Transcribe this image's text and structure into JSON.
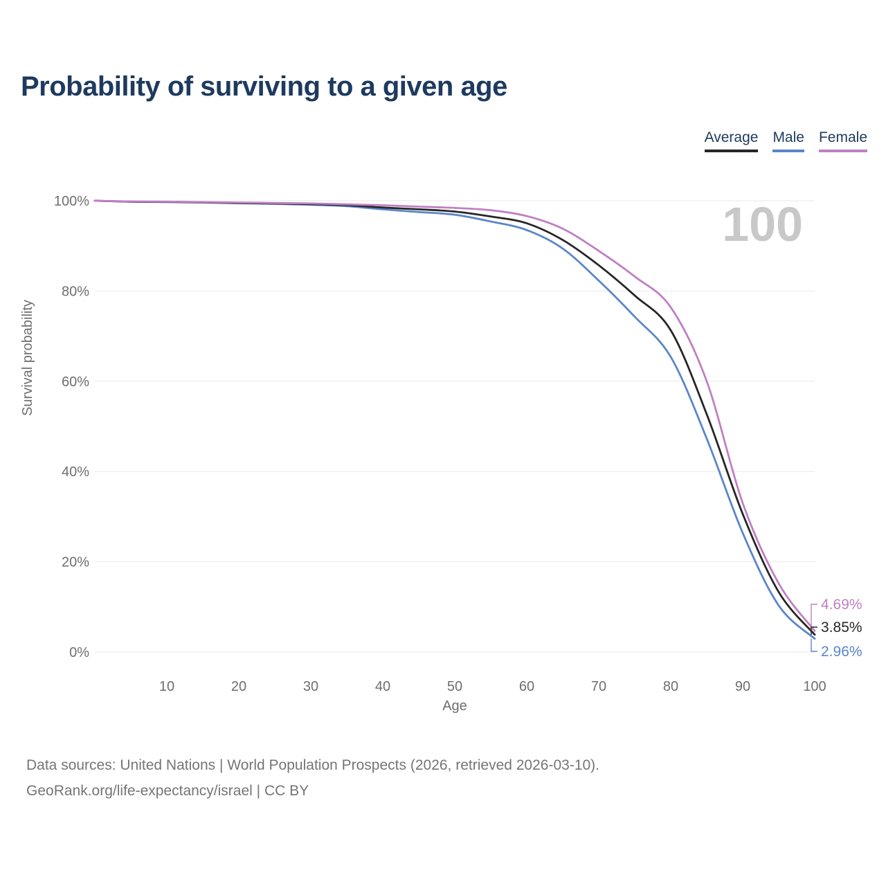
{
  "title": "Probability of surviving to a given age",
  "watermark": "100",
  "legend": [
    {
      "label": "Average",
      "color": "#262626"
    },
    {
      "label": "Male",
      "color": "#5b86c8"
    },
    {
      "label": "Female",
      "color": "#bf80c2"
    }
  ],
  "chart_data": {
    "type": "line",
    "title": "Probability of surviving to a given age",
    "xlabel": "Age",
    "ylabel": "Survival probability",
    "xlim": [
      0,
      100
    ],
    "ylim": [
      0,
      100
    ],
    "grid": "horizontal",
    "legend_position": "top-right",
    "x_ticks": [
      10,
      20,
      30,
      40,
      50,
      60,
      70,
      80,
      90,
      100
    ],
    "y_ticks": [
      0,
      20,
      40,
      60,
      80,
      100
    ],
    "y_tick_suffix": "%",
    "x": [
      0,
      5,
      10,
      15,
      20,
      25,
      30,
      35,
      40,
      45,
      50,
      55,
      60,
      65,
      70,
      75,
      80,
      85,
      90,
      95,
      100
    ],
    "series": [
      {
        "name": "Average",
        "color": "#262626",
        "end_label": "3.85%",
        "values": [
          100,
          99.8,
          99.75,
          99.65,
          99.5,
          99.4,
          99.25,
          99.0,
          98.5,
          98.1,
          97.6,
          96.5,
          95.0,
          91.3,
          85.7,
          79.0,
          71.3,
          52.7,
          30.6,
          13.3,
          3.85
        ]
      },
      {
        "name": "Male",
        "color": "#5b86c8",
        "end_label": "2.96%",
        "values": [
          100,
          99.8,
          99.7,
          99.6,
          99.45,
          99.3,
          99.1,
          98.8,
          98.1,
          97.5,
          96.9,
          95.4,
          93.5,
          89.4,
          82.3,
          74.3,
          65.4,
          47.3,
          26.4,
          10.3,
          2.96
        ]
      },
      {
        "name": "Female",
        "color": "#bf80c2",
        "end_label": "4.69%",
        "values": [
          100,
          99.85,
          99.8,
          99.7,
          99.6,
          99.5,
          99.4,
          99.2,
          99.0,
          98.7,
          98.4,
          97.9,
          96.6,
          93.8,
          88.9,
          83.2,
          76.4,
          60.0,
          33.0,
          15.2,
          4.69
        ]
      }
    ]
  },
  "footer": {
    "line1": "Data sources: United Nations | World Population Prospects (2026, retrieved 2026-03-10).",
    "line2": "GeoRank.org/life-expectancy/israel | CC BY"
  }
}
